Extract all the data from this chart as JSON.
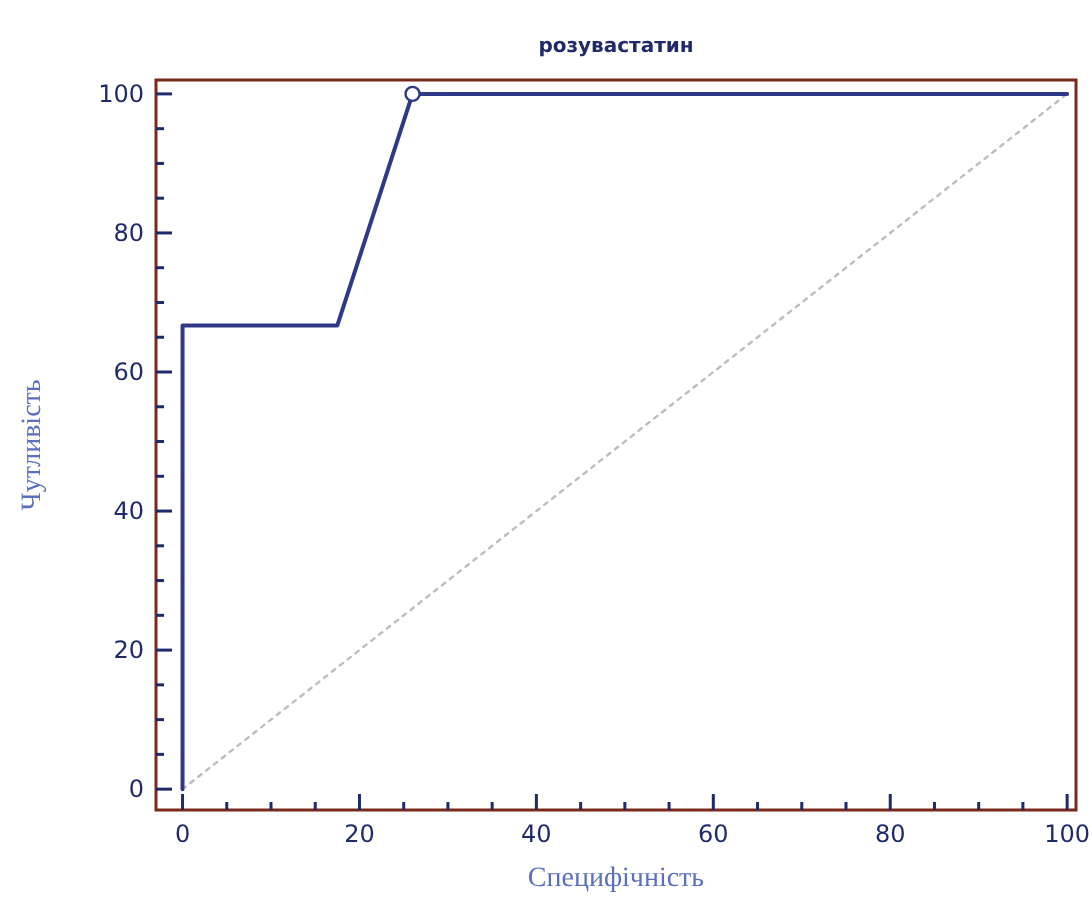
{
  "chart_data": {
    "type": "line",
    "title": "розувастатин",
    "xlabel": "Специфічність",
    "ylabel": "Чутливість",
    "xlim": [
      -3,
      101
    ],
    "ylim": [
      -3,
      102
    ],
    "xticks": [
      0,
      {
        "value": 5,
        "label": null
      },
      {
        "value": 10,
        "label": null
      },
      {
        "value": 15,
        "label": null
      },
      20,
      {
        "value": 25,
        "label": null
      },
      {
        "value": 30,
        "label": null
      },
      {
        "value": 35,
        "label": null
      },
      40,
      {
        "value": 45,
        "label": null
      },
      {
        "value": 50,
        "label": null
      },
      {
        "value": 55,
        "label": null
      },
      60,
      {
        "value": 65,
        "label": null
      },
      {
        "value": 70,
        "label": null
      },
      {
        "value": 75,
        "label": null
      },
      80,
      {
        "value": 85,
        "label": null
      },
      {
        "value": 90,
        "label": null
      },
      {
        "value": 95,
        "label": null
      },
      100
    ],
    "yticks": [
      0,
      {
        "value": 5,
        "label": null
      },
      {
        "value": 10,
        "label": null
      },
      {
        "value": 15,
        "label": null
      },
      20,
      {
        "value": 25,
        "label": null
      },
      {
        "value": 30,
        "label": null
      },
      {
        "value": 35,
        "label": null
      },
      40,
      {
        "value": 45,
        "label": null
      },
      {
        "value": 50,
        "label": null
      },
      {
        "value": 55,
        "label": null
      },
      60,
      {
        "value": 65,
        "label": null
      },
      {
        "value": 70,
        "label": null
      },
      {
        "value": 75,
        "label": null
      },
      80,
      {
        "value": 85,
        "label": null
      },
      {
        "value": 90,
        "label": null
      },
      {
        "value": 95,
        "label": null
      },
      100
    ],
    "grid": false,
    "series": [
      {
        "color": "#bdbdbd",
        "line_style": "dotted",
        "marker": "none",
        "x": [
          0,
          100
        ],
        "values": [
          0,
          100
        ]
      },
      {
        "color": "#2e3a87",
        "line_style": "solid",
        "marker": "none",
        "x": [
          0,
          0,
          17.5,
          26,
          100
        ],
        "values": [
          0,
          66.7,
          66.7,
          100,
          100
        ]
      },
      {
        "type": "scatter",
        "color": "#2e3a87",
        "marker": "circle",
        "x": [
          26
        ],
        "values": [
          100
        ]
      }
    ]
  }
}
